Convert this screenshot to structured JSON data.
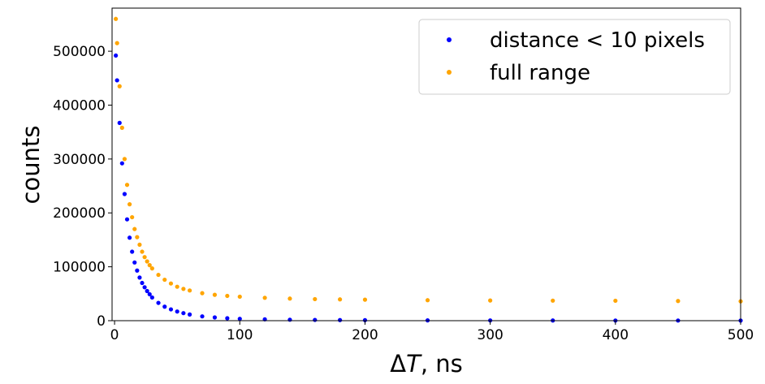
{
  "chart_data": {
    "type": "scatter",
    "xlabel": "ΔT, ns",
    "ylabel": "counts",
    "xlim": [
      -2,
      500
    ],
    "ylim": [
      0,
      580000
    ],
    "x_ticks": [
      0,
      100,
      200,
      300,
      400,
      500
    ],
    "y_ticks": [
      0,
      100000,
      200000,
      300000,
      400000,
      500000
    ],
    "grid": false,
    "legend_position": "top-right",
    "series": [
      {
        "name": "distance < 10 pixels",
        "color": "#0000ff",
        "x": [
          1,
          2,
          4,
          6,
          8,
          10,
          12,
          14,
          16,
          18,
          20,
          22,
          24,
          26,
          28,
          30,
          35,
          40,
          45,
          50,
          55,
          60,
          70,
          80,
          90,
          100,
          120,
          140,
          160,
          180,
          200,
          250,
          300,
          350,
          400,
          450,
          500
        ],
        "y": [
          492000,
          446000,
          367000,
          292000,
          235000,
          188000,
          154000,
          128000,
          108000,
          93000,
          80000,
          70000,
          62000,
          55000,
          49000,
          43000,
          33000,
          26000,
          21000,
          17000,
          14000,
          11500,
          8000,
          6000,
          4500,
          3500,
          2500,
          1800,
          1400,
          1100,
          900,
          600,
          450,
          350,
          300,
          250,
          200
        ]
      },
      {
        "name": "full range",
        "color": "#ffa500",
        "x": [
          1,
          2,
          4,
          6,
          8,
          10,
          12,
          14,
          16,
          18,
          20,
          22,
          24,
          26,
          28,
          30,
          35,
          40,
          45,
          50,
          55,
          60,
          70,
          80,
          90,
          100,
          120,
          140,
          160,
          180,
          200,
          250,
          300,
          350,
          400,
          450,
          500
        ],
        "y": [
          560000,
          515000,
          435000,
          358000,
          300000,
          252000,
          216000,
          192000,
          170000,
          155000,
          141000,
          128000,
          118000,
          110000,
          103000,
          97000,
          85000,
          76000,
          69000,
          63000,
          59000,
          56000,
          51000,
          48000,
          46000,
          44500,
          42500,
          41000,
          40000,
          39500,
          39000,
          38000,
          37500,
          37200,
          37000,
          36500,
          36000
        ]
      }
    ]
  }
}
